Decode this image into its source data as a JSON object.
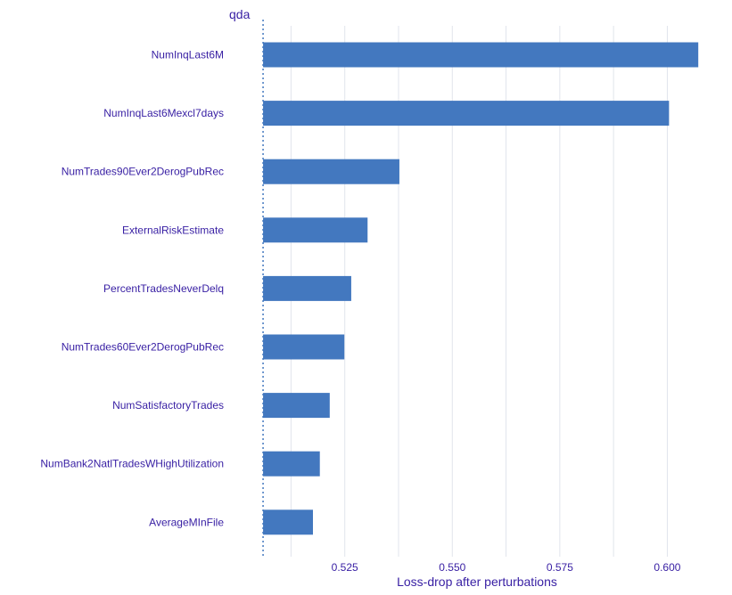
{
  "colors": {
    "bar": "#4378bf",
    "text": "#371ea3",
    "grid": "#e1e4ec",
    "baseline": "#4378bf"
  },
  "chart_data": {
    "type": "bar",
    "orientation": "horizontal",
    "title": "qda",
    "xlabel": "Loss-drop after perturbations",
    "ylabel": "",
    "baseline": 0.506,
    "xlim": [
      0.5035,
      0.6082
    ],
    "xticks": [
      "0.525",
      "0.550",
      "0.575",
      "0.600"
    ],
    "categories": [
      "NumInqLast6M",
      "NumInqLast6Mexcl7days",
      "NumTrades90Ever2DerogPubRec",
      "ExternalRiskEstimate",
      "PercentTradesNeverDelq",
      "NumTrades60Ever2DerogPubRec",
      "NumSatisfactoryTrades",
      "NumBank2NatlTradesWHighUtilization",
      "AverageMInFile"
    ],
    "values": [
      0.6072,
      0.6004,
      0.5377,
      0.5303,
      0.5265,
      0.5249,
      0.5215,
      0.5192,
      0.5176
    ],
    "grid": true
  }
}
